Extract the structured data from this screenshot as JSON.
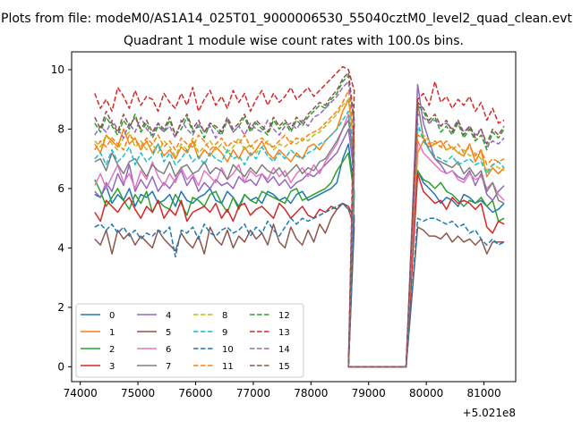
{
  "chart_data": {
    "type": "line",
    "suptitle": "Plots from file: modeM0/AS1A14_025T01_9000006530_55040cztM0_level2_quad_clean.evt",
    "title": "Quadrant 1 module wise count rates with 100.0s bins.",
    "xlabel": "",
    "ylabel": "",
    "x_offset_label": "+5.021e8",
    "xlim": [
      73850,
      81550
    ],
    "ylim": [
      -0.5,
      10.6
    ],
    "xticks": [
      74000,
      75000,
      76000,
      77000,
      78000,
      79000,
      80000,
      81000
    ],
    "xtick_labels": [
      "74000",
      "75000",
      "76000",
      "77000",
      "78000",
      "79000",
      "80000",
      "81000"
    ],
    "yticks": [
      0,
      2,
      4,
      6,
      8,
      10
    ],
    "ytick_labels": [
      "0",
      "2",
      "4",
      "6",
      "8",
      "10"
    ],
    "grid": false,
    "legend_placement": "lower-left",
    "legend_columns": 4,
    "x_note": "x in seconds relative to the +5.021e8 offset; 100 s bins from 74250 to 81250",
    "gap_x": [
      78650,
      79650
    ],
    "series": [
      {
        "name": "0",
        "color": "#1f77b4",
        "dashed": false,
        "pre": [
          5.8,
          5.7,
          6.1,
          5.5,
          5.8,
          5.6,
          6.0,
          5.4,
          5.8,
          5.7,
          5.9,
          5.5,
          5.6,
          5.8,
          5.4,
          5.9,
          5.6,
          5.5,
          5.7,
          5.8,
          6.0,
          5.6,
          5.5,
          5.9,
          5.7,
          5.4,
          5.8,
          5.6,
          5.7,
          5.5,
          5.9,
          5.8,
          5.6,
          5.7,
          5.5,
          5.8,
          5.9,
          5.6,
          5.7,
          5.8,
          5.9,
          6.0,
          6.2,
          7.0,
          7.5,
          5.9
        ],
        "post": [
          6.6,
          6.2,
          6.0,
          5.8,
          5.5,
          5.7,
          5.6,
          5.4,
          5.8,
          5.7,
          5.5,
          5.6,
          5.4,
          5.2,
          5.3,
          5.5
        ]
      },
      {
        "name": "1",
        "color": "#ff7f0e",
        "dashed": false,
        "pre": [
          7.5,
          7.2,
          7.8,
          7.6,
          7.4,
          8.0,
          7.5,
          7.7,
          7.3,
          7.6,
          7.2,
          7.5,
          7.1,
          7.3,
          7.0,
          7.4,
          7.2,
          7.6,
          7.0,
          7.3,
          7.1,
          7.4,
          7.2,
          6.9,
          7.3,
          7.0,
          7.4,
          7.1,
          7.3,
          7.6,
          7.2,
          7.0,
          7.3,
          7.1,
          6.9,
          7.2,
          7.0,
          7.4,
          7.5,
          7.3,
          7.6,
          7.8,
          8.0,
          8.6,
          9.0,
          7.5
        ],
        "post": [
          7.2,
          7.6,
          7.4,
          7.5,
          7.6,
          7.3,
          7.4,
          7.2,
          7.1,
          7.5,
          6.9,
          7.3,
          6.4,
          6.7,
          6.5,
          6.7
        ]
      },
      {
        "name": "2",
        "color": "#2ca02c",
        "dashed": false,
        "pre": [
          6.3,
          5.9,
          5.4,
          5.7,
          6.0,
          5.6,
          5.3,
          5.8,
          5.5,
          5.9,
          5.2,
          5.6,
          5.4,
          5.3,
          5.8,
          5.5,
          5.1,
          5.7,
          5.6,
          5.4,
          5.8,
          5.9,
          5.5,
          5.2,
          5.7,
          5.3,
          5.8,
          5.6,
          5.5,
          5.9,
          5.8,
          5.7,
          5.6,
          5.5,
          5.9,
          6.0,
          5.6,
          5.7,
          5.8,
          5.9,
          6.0,
          6.2,
          6.6,
          6.9,
          7.2,
          5.8
        ],
        "post": [
          6.6,
          6.3,
          6.2,
          6.0,
          6.2,
          5.9,
          5.8,
          5.6,
          5.4,
          5.6,
          5.5,
          5.7,
          5.4,
          5.6,
          4.9,
          5.0
        ]
      },
      {
        "name": "3",
        "color": "#d62728",
        "dashed": false,
        "pre": [
          5.2,
          4.9,
          5.6,
          5.4,
          5.2,
          5.5,
          5.7,
          5.3,
          5.0,
          5.4,
          5.2,
          5.6,
          5.0,
          5.3,
          5.1,
          5.6,
          4.9,
          5.2,
          5.3,
          5.4,
          5.2,
          5.5,
          5.0,
          5.3,
          4.9,
          5.4,
          5.5,
          5.1,
          5.3,
          5.4,
          5.2,
          5.0,
          5.5,
          5.3,
          5.0,
          5.2,
          5.4,
          5.1,
          5.0,
          5.3,
          5.2,
          5.4,
          5.3,
          5.5,
          5.4,
          5.0
        ],
        "post": [
          6.5,
          5.9,
          5.7,
          5.5,
          5.6,
          5.3,
          5.7,
          5.5,
          5.6,
          5.5,
          5.3,
          5.5,
          4.7,
          4.5,
          4.9,
          4.8
        ]
      },
      {
        "name": "4",
        "color": "#9467bd",
        "dashed": false,
        "pre": [
          5.9,
          5.7,
          6.2,
          5.9,
          6.5,
          6.1,
          6.8,
          5.9,
          6.3,
          6.0,
          6.4,
          5.9,
          6.2,
          6.0,
          6.3,
          6.6,
          6.1,
          6.4,
          5.9,
          6.2,
          6.0,
          6.3,
          6.1,
          6.2,
          6.0,
          6.4,
          6.2,
          6.3,
          6.1,
          6.5,
          6.2,
          6.4,
          6.1,
          6.3,
          6.0,
          6.2,
          6.3,
          6.5,
          6.4,
          6.6,
          6.8,
          7.0,
          7.2,
          7.6,
          8.0,
          6.5
        ],
        "post": [
          9.5,
          8.2,
          7.6,
          7.0,
          6.8,
          6.5,
          6.6,
          6.4,
          6.3,
          6.6,
          6.1,
          6.5,
          5.8,
          5.6,
          5.9,
          6.1
        ]
      },
      {
        "name": "5",
        "color": "#8c564b",
        "dashed": false,
        "pre": [
          4.3,
          4.1,
          4.6,
          3.8,
          4.6,
          4.3,
          4.5,
          4.1,
          4.4,
          4.2,
          4.0,
          4.6,
          4.3,
          4.1,
          3.9,
          4.5,
          4.2,
          4.0,
          4.4,
          3.8,
          4.7,
          4.3,
          4.1,
          4.6,
          4.0,
          4.4,
          4.2,
          4.6,
          4.3,
          4.5,
          4.1,
          4.8,
          4.2,
          4.0,
          4.7,
          4.3,
          4.1,
          4.6,
          4.2,
          4.8,
          4.5,
          5.0,
          5.3,
          5.5,
          5.3,
          4.7
        ],
        "post": [
          4.7,
          4.6,
          4.4,
          4.4,
          4.3,
          4.5,
          4.2,
          4.4,
          4.2,
          4.3,
          4.1,
          4.3,
          3.8,
          4.2,
          4.2,
          4.2
        ]
      },
      {
        "name": "6",
        "color": "#e377c2",
        "dashed": false,
        "pre": [
          6.1,
          6.5,
          6.0,
          6.4,
          6.8,
          6.2,
          6.5,
          6.0,
          6.6,
          6.3,
          6.9,
          6.4,
          6.1,
          6.5,
          6.2,
          6.7,
          6.3,
          6.5,
          6.1,
          6.6,
          6.4,
          6.2,
          6.7,
          6.3,
          6.5,
          6.8,
          6.2,
          6.6,
          6.4,
          6.5,
          6.3,
          6.7,
          6.4,
          6.6,
          6.2,
          6.5,
          6.7,
          6.4,
          6.8,
          6.5,
          6.9,
          7.2,
          7.5,
          8.0,
          8.5,
          6.8
        ],
        "post": [
          7.6,
          7.2,
          7.0,
          6.8,
          6.6,
          6.5,
          6.6,
          6.3,
          6.2,
          6.5,
          6.3,
          6.4,
          6.0,
          6.2,
          5.8,
          5.6
        ]
      },
      {
        "name": "7",
        "color": "#7f7f7f",
        "dashed": false,
        "pre": [
          6.9,
          7.0,
          6.6,
          7.2,
          6.8,
          6.5,
          6.9,
          7.0,
          6.7,
          6.4,
          6.8,
          6.6,
          6.5,
          6.9,
          6.4,
          6.7,
          6.8,
          6.5,
          6.6,
          6.9,
          6.5,
          6.7,
          6.6,
          6.3,
          6.8,
          6.6,
          6.4,
          6.7,
          6.5,
          6.8,
          6.6,
          6.5,
          6.7,
          6.4,
          6.6,
          6.8,
          6.5,
          6.7,
          6.6,
          6.9,
          7.0,
          7.3,
          7.6,
          8.0,
          8.3,
          6.9
        ],
        "post": [
          8.9,
          7.7,
          7.3,
          7.0,
          6.9,
          6.8,
          6.7,
          6.9,
          6.5,
          6.7,
          6.4,
          6.6,
          5.9,
          6.2,
          5.6,
          5.5
        ]
      },
      {
        "name": "8",
        "color": "#bcbd22",
        "dashed": true,
        "pre": [
          7.6,
          7.4,
          7.8,
          7.5,
          7.3,
          7.7,
          7.9,
          7.4,
          7.6,
          7.3,
          7.5,
          7.2,
          7.6,
          7.4,
          7.1,
          7.5,
          7.3,
          7.7,
          7.2,
          7.4,
          7.6,
          7.3,
          7.5,
          7.2,
          7.4,
          7.7,
          7.3,
          7.5,
          7.2,
          7.4,
          7.6,
          7.3,
          7.5,
          7.4,
          7.6,
          7.5,
          7.7,
          7.6,
          7.8,
          7.9,
          8.1,
          8.3,
          8.5,
          8.8,
          9.0,
          7.6
        ],
        "post": [
          8.0,
          7.8,
          7.6,
          7.5,
          7.4,
          7.3,
          7.4,
          7.2,
          7.3,
          7.1,
          7.2,
          7.0,
          6.6,
          6.8,
          6.7,
          6.6
        ]
      },
      {
        "name": "9",
        "color": "#17becf",
        "dashed": true,
        "pre": [
          7.0,
          7.2,
          6.8,
          7.3,
          6.9,
          7.1,
          7.4,
          6.8,
          7.2,
          6.9,
          7.1,
          7.5,
          6.9,
          7.2,
          6.8,
          7.0,
          7.3,
          6.9,
          7.1,
          6.8,
          7.2,
          7.0,
          6.9,
          7.3,
          7.0,
          7.1,
          6.8,
          7.2,
          7.0,
          7.4,
          7.1,
          6.9,
          7.2,
          7.0,
          7.3,
          7.1,
          7.0,
          7.2,
          7.3,
          7.5,
          7.6,
          7.8,
          8.0,
          8.3,
          8.6,
          7.2
        ],
        "post": [
          8.2,
          7.6,
          7.3,
          7.1,
          7.0,
          6.9,
          7.1,
          6.8,
          6.9,
          7.0,
          6.8,
          6.9,
          6.5,
          6.8,
          6.9,
          6.7
        ]
      },
      {
        "name": "10",
        "color": "#1f77b4",
        "dashed": true,
        "pre": [
          4.7,
          4.8,
          4.6,
          4.8,
          4.5,
          4.7,
          4.4,
          4.6,
          4.3,
          4.5,
          4.4,
          4.6,
          4.5,
          4.7,
          3.7,
          4.6,
          4.5,
          4.7,
          4.3,
          4.8,
          4.5,
          4.4,
          4.6,
          4.7,
          4.5,
          4.6,
          4.8,
          4.4,
          4.7,
          4.5,
          4.9,
          4.6,
          4.4,
          4.7,
          5.0,
          4.8,
          5.0,
          4.9,
          5.0,
          5.1,
          5.2,
          5.3,
          5.4,
          5.5,
          5.3,
          5.1
        ],
        "post": [
          5.0,
          4.9,
          5.0,
          5.0,
          4.9,
          4.8,
          4.9,
          4.7,
          4.8,
          4.5,
          4.6,
          4.3,
          4.1,
          4.3,
          4.1,
          4.2
        ]
      },
      {
        "name": "11",
        "color": "#ff7f0e",
        "dashed": true,
        "pre": [
          7.3,
          7.6,
          7.4,
          7.7,
          7.5,
          7.3,
          7.8,
          7.6,
          7.4,
          7.7,
          7.5,
          7.8,
          7.4,
          7.6,
          7.3,
          7.7,
          7.5,
          7.4,
          7.8,
          7.6,
          7.3,
          7.5,
          7.7,
          7.4,
          7.6,
          7.5,
          7.8,
          7.4,
          7.6,
          7.7,
          7.5,
          7.4,
          7.6,
          7.8,
          7.5,
          7.7,
          7.6,
          7.8,
          7.9,
          8.0,
          8.2,
          8.4,
          8.6,
          8.9,
          9.3,
          7.7
        ],
        "post": [
          7.8,
          7.7,
          7.5,
          7.6,
          7.4,
          7.6,
          7.3,
          7.5,
          7.2,
          7.4,
          7.1,
          7.3,
          6.8,
          7.0,
          6.9,
          7.0
        ]
      },
      {
        "name": "12",
        "color": "#2ca02c",
        "dashed": true,
        "pre": [
          8.2,
          7.9,
          8.4,
          8.1,
          7.8,
          8.3,
          8.0,
          8.5,
          7.9,
          8.2,
          7.7,
          8.1,
          7.9,
          8.3,
          7.8,
          8.0,
          8.4,
          7.9,
          8.1,
          7.7,
          8.2,
          8.0,
          7.8,
          8.3,
          7.9,
          8.1,
          8.4,
          7.9,
          8.2,
          8.0,
          7.8,
          8.3,
          8.0,
          8.2,
          7.9,
          8.3,
          8.1,
          8.4,
          8.6,
          8.8,
          8.7,
          9.0,
          9.2,
          9.6,
          9.8,
          8.2
        ],
        "post": [
          8.8,
          8.6,
          8.2,
          8.4,
          7.9,
          8.1,
          7.8,
          8.2,
          7.7,
          8.0,
          7.6,
          7.8,
          7.3,
          7.9,
          7.7,
          8.0
        ]
      },
      {
        "name": "13",
        "color": "#d62728",
        "dashed": true,
        "pre": [
          9.2,
          8.7,
          9.0,
          8.6,
          9.4,
          9.1,
          8.7,
          9.3,
          8.8,
          9.1,
          9.0,
          8.6,
          9.2,
          8.9,
          8.7,
          9.2,
          8.8,
          9.4,
          8.6,
          9.0,
          9.3,
          8.8,
          9.1,
          8.7,
          9.3,
          8.9,
          9.2,
          8.6,
          9.0,
          9.3,
          8.8,
          9.2,
          8.9,
          9.1,
          9.4,
          9.0,
          9.2,
          9.4,
          9.1,
          9.3,
          9.5,
          9.7,
          9.9,
          10.1,
          10.0,
          9.3
        ],
        "post": [
          9.0,
          9.2,
          8.8,
          9.6,
          8.9,
          9.1,
          8.7,
          9.0,
          8.8,
          9.1,
          8.6,
          8.9,
          8.3,
          8.7,
          8.2,
          8.3
        ]
      },
      {
        "name": "14",
        "color": "#9467bd",
        "dashed": true,
        "pre": [
          7.8,
          8.1,
          7.9,
          8.3,
          8.0,
          7.7,
          8.2,
          7.9,
          8.4,
          8.0,
          7.8,
          8.2,
          7.9,
          8.1,
          7.7,
          8.3,
          8.0,
          7.8,
          8.2,
          7.9,
          8.1,
          7.7,
          8.0,
          8.3,
          7.9,
          8.1,
          7.8,
          8.2,
          8.0,
          7.9,
          8.3,
          8.0,
          7.8,
          8.1,
          8.2,
          8.0,
          8.3,
          8.1,
          8.4,
          8.5,
          8.7,
          8.9,
          9.1,
          9.4,
          9.6,
          8.1
        ],
        "post": [
          8.5,
          8.4,
          8.2,
          8.3,
          8.1,
          8.2,
          8.0,
          8.3,
          7.9,
          8.1,
          7.8,
          8.0,
          7.4,
          7.6,
          7.5,
          7.7
        ]
      },
      {
        "name": "15",
        "color": "#8c564b",
        "dashed": true,
        "pre": [
          8.4,
          8.0,
          8.6,
          8.2,
          7.9,
          8.5,
          8.1,
          8.4,
          8.0,
          8.3,
          7.9,
          8.2,
          8.0,
          8.4,
          7.8,
          8.2,
          8.5,
          8.0,
          8.3,
          7.9,
          8.2,
          8.1,
          7.9,
          8.4,
          8.0,
          8.2,
          8.5,
          8.0,
          8.3,
          8.1,
          7.9,
          8.4,
          8.1,
          8.3,
          8.0,
          8.4,
          8.2,
          8.5,
          8.7,
          8.9,
          8.8,
          9.1,
          9.3,
          9.7,
          9.9,
          8.3
        ],
        "post": [
          8.9,
          8.7,
          8.3,
          8.5,
          8.1,
          8.3,
          7.9,
          8.3,
          7.8,
          8.1,
          7.7,
          8.0,
          7.5,
          8.0,
          7.8,
          8.1
        ]
      }
    ]
  }
}
